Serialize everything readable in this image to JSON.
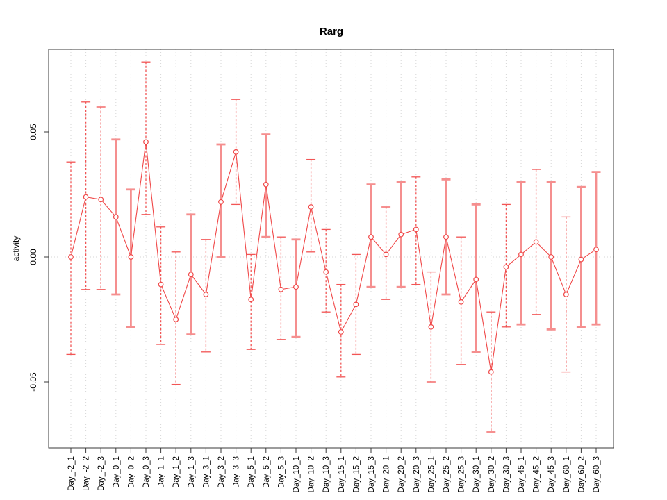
{
  "title": "Rarg",
  "axes": {
    "ylabel": "activity",
    "ytick_labels": [
      "0.05",
      "0.00",
      "-0.05"
    ],
    "ytick_values": [
      0.05,
      0.0,
      -0.05
    ]
  },
  "colors": {
    "series_red": "#f04848",
    "dashed_bar": "#f25555",
    "solid_bar": "#f58f8f",
    "grid_gray": "#d6d6d6",
    "axis_black": "#3a3a3a"
  },
  "chart_data": {
    "type": "line",
    "title": "Rarg",
    "xlabel": "",
    "ylabel": "activity",
    "ylim": [
      -0.076,
      0.083
    ],
    "yticks": [
      0.05,
      0.0,
      -0.05
    ],
    "grid": "dotted vertical line at every category; dotted horizontal line at y=0",
    "legend_position": "none",
    "marker": "open-circle",
    "categories": [
      "Day_-2_1",
      "Day_-2_2",
      "Day_-2_3",
      "Day_0_1",
      "Day_0_2",
      "Day_0_3",
      "Day_1_1",
      "Day_1_2",
      "Day_1_3",
      "Day_3_1",
      "Day_3_2",
      "Day_3_3",
      "Day_5_1",
      "Day_5_2",
      "Day_5_3",
      "Day_10_1",
      "Day_10_2",
      "Day_10_3",
      "Day_15_1",
      "Day_15_2",
      "Day_15_3",
      "Day_20_1",
      "Day_20_2",
      "Day_20_3",
      "Day_25_1",
      "Day_25_2",
      "Day_25_3",
      "Day_30_1",
      "Day_30_2",
      "Day_30_3",
      "Day_45_1",
      "Day_45_2",
      "Day_45_3",
      "Day_60_1",
      "Day_60_2",
      "Day_60_3"
    ],
    "series": [
      {
        "name": "activity",
        "values": [
          0.0,
          0.024,
          0.023,
          0.016,
          0.0,
          0.046,
          -0.011,
          -0.025,
          -0.007,
          -0.015,
          0.022,
          0.042,
          -0.017,
          0.029,
          -0.013,
          -0.012,
          0.02,
          -0.006,
          -0.03,
          -0.019,
          0.008,
          0.001,
          0.009,
          0.011,
          -0.028,
          0.008,
          -0.018,
          -0.009,
          -0.046,
          -0.004,
          0.001,
          0.006,
          0.0,
          -0.015,
          -0.001,
          0.003
        ],
        "err_lo": [
          -0.039,
          -0.013,
          -0.013,
          -0.015,
          -0.028,
          0.017,
          -0.035,
          -0.051,
          -0.031,
          -0.038,
          0.0,
          0.021,
          -0.037,
          0.008,
          -0.033,
          -0.032,
          0.002,
          -0.022,
          -0.048,
          -0.039,
          -0.012,
          -0.017,
          -0.012,
          -0.011,
          -0.05,
          -0.015,
          -0.043,
          -0.038,
          -0.07,
          -0.028,
          -0.027,
          -0.023,
          -0.029,
          -0.046,
          -0.028,
          -0.027
        ],
        "err_hi": [
          0.038,
          0.062,
          0.06,
          0.047,
          0.027,
          0.078,
          0.012,
          0.002,
          0.017,
          0.007,
          0.045,
          0.063,
          0.001,
          0.049,
          0.008,
          0.007,
          0.039,
          0.011,
          -0.011,
          0.001,
          0.029,
          0.02,
          0.03,
          0.032,
          -0.006,
          0.031,
          0.008,
          0.021,
          -0.022,
          0.021,
          0.03,
          0.035,
          0.03,
          0.016,
          0.028,
          0.034
        ],
        "bar_styles": [
          "dashed",
          "dashed",
          "dashed",
          "solid",
          "solid",
          "dashed",
          "dashed",
          "dashed",
          "solid",
          "dashed",
          "solid",
          "dashed",
          "dashed",
          "solid",
          "dashed",
          "solid",
          "dashed",
          "dashed",
          "dashed",
          "dashed",
          "solid",
          "dashed",
          "solid",
          "dashed",
          "dashed",
          "solid",
          "dashed",
          "solid",
          "dashed",
          "dashed",
          "solid",
          "dashed",
          "solid",
          "dashed",
          "solid",
          "solid"
        ]
      }
    ]
  }
}
